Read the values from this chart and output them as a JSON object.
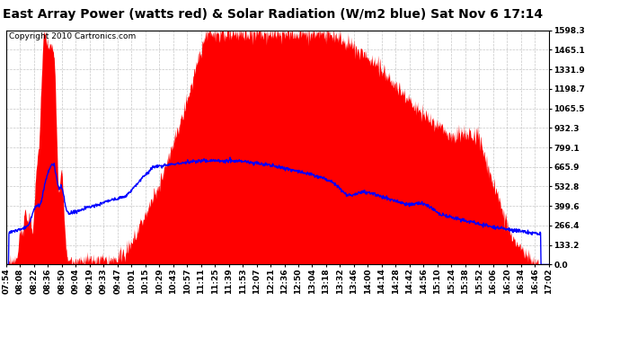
{
  "title": "East Array Power (watts red) & Solar Radiation (W/m2 blue) Sat Nov 6 17:14",
  "copyright": "Copyright 2010 Cartronics.com",
  "yticks": [
    0.0,
    133.2,
    266.4,
    399.6,
    532.8,
    665.9,
    799.1,
    932.3,
    1065.5,
    1198.7,
    1331.9,
    1465.1,
    1598.3
  ],
  "ymax": 1598.3,
  "bg_color": "#ffffff",
  "plot_bg_color": "#ffffff",
  "grid_color": "#c0c0c0",
  "red_color": "#ff0000",
  "blue_color": "#0000ff",
  "title_fontsize": 10,
  "copyright_fontsize": 6.5,
  "tick_fontsize": 6.5,
  "xtick_labels": [
    "07:54",
    "08:08",
    "08:22",
    "08:36",
    "08:50",
    "09:04",
    "09:19",
    "09:33",
    "09:47",
    "10:01",
    "10:15",
    "10:29",
    "10:43",
    "10:57",
    "11:11",
    "11:25",
    "11:39",
    "11:53",
    "12:07",
    "12:21",
    "12:36",
    "12:50",
    "13:04",
    "13:18",
    "13:32",
    "13:46",
    "14:00",
    "14:14",
    "14:28",
    "14:42",
    "14:56",
    "15:10",
    "15:24",
    "15:38",
    "15:52",
    "16:06",
    "16:20",
    "16:34",
    "16:46",
    "17:02"
  ]
}
